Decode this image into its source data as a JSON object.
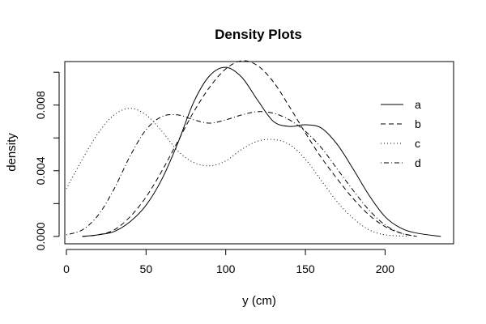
{
  "chart_data": {
    "type": "line",
    "title": "Density Plots",
    "xlabel": "y (cm)",
    "ylabel": "density",
    "xlim": [
      -1,
      243
    ],
    "ylim": [
      -0.00045,
      0.01065
    ],
    "xticks": [
      0,
      50,
      100,
      150,
      200
    ],
    "xtick_labels": [
      "0",
      "50",
      "100",
      "150",
      "200"
    ],
    "yticks": [
      0.0,
      0.002,
      0.004,
      0.006,
      0.008,
      0.01
    ],
    "ytick_labels": [
      "0.000",
      "",
      "0.004",
      "",
      "0.008",
      ""
    ],
    "legend_position": "top-right",
    "series": [
      {
        "name": "a",
        "dash": "solid",
        "x": [
          10,
          20,
          30,
          40,
          50,
          60,
          70,
          80,
          90,
          100,
          110,
          120,
          130,
          140,
          150,
          160,
          170,
          180,
          190,
          200,
          210,
          220,
          235
        ],
        "y": [
          0.0,
          0.0001,
          0.0003,
          0.0009,
          0.0019,
          0.0035,
          0.0057,
          0.0082,
          0.0098,
          0.0103,
          0.0097,
          0.0083,
          0.007,
          0.0067,
          0.0068,
          0.0066,
          0.0056,
          0.0041,
          0.0025,
          0.0012,
          0.0005,
          0.0002,
          0.0
        ]
      },
      {
        "name": "b",
        "dash": "dashed",
        "x": [
          10,
          20,
          30,
          40,
          50,
          60,
          70,
          80,
          90,
          100,
          110,
          120,
          130,
          140,
          150,
          160,
          170,
          180,
          190,
          200,
          210,
          220
        ],
        "y": [
          0.0,
          0.0001,
          0.0004,
          0.0012,
          0.0024,
          0.004,
          0.0058,
          0.0076,
          0.0091,
          0.0102,
          0.0107,
          0.0104,
          0.0094,
          0.0079,
          0.0063,
          0.0048,
          0.0035,
          0.0023,
          0.0013,
          0.0006,
          0.0002,
          0.0
        ]
      },
      {
        "name": "c",
        "dash": "dotted",
        "x": [
          0,
          10,
          20,
          30,
          40,
          50,
          60,
          70,
          80,
          90,
          100,
          110,
          120,
          130,
          140,
          150,
          160,
          170,
          180,
          190,
          200,
          215
        ],
        "y": [
          0.0029,
          0.0047,
          0.0063,
          0.0074,
          0.0078,
          0.0074,
          0.0064,
          0.0052,
          0.0045,
          0.0043,
          0.0046,
          0.0053,
          0.0058,
          0.0059,
          0.0056,
          0.0047,
          0.0034,
          0.0021,
          0.0011,
          0.0004,
          0.0001,
          0.0
        ]
      },
      {
        "name": "d",
        "dash": "dotdash",
        "x": [
          0,
          10,
          20,
          30,
          40,
          50,
          60,
          70,
          80,
          90,
          100,
          110,
          120,
          130,
          140,
          150,
          160,
          170,
          180,
          190,
          200,
          210,
          220
        ],
        "y": [
          0.0001,
          0.0004,
          0.0013,
          0.0029,
          0.0049,
          0.0065,
          0.0073,
          0.0074,
          0.0071,
          0.0069,
          0.0071,
          0.0074,
          0.0076,
          0.0075,
          0.0071,
          0.0064,
          0.0054,
          0.0041,
          0.0028,
          0.0016,
          0.0007,
          0.0002,
          0.0
        ]
      }
    ]
  }
}
